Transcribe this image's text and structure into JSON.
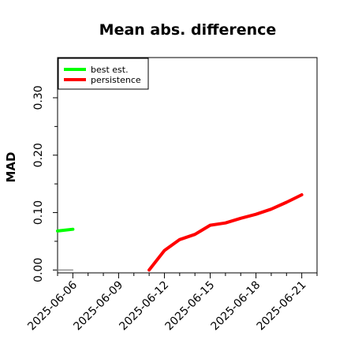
{
  "chart_data": {
    "type": "line",
    "title": "Mean abs. difference",
    "ylabel": "MAD",
    "xlabel": "",
    "ylim": [
      -0.005,
      0.37
    ],
    "yticks": [
      "0.00",
      "0.10",
      "0.20",
      "0.30"
    ],
    "ytick_values": [
      0.0,
      0.1,
      0.2,
      0.3
    ],
    "xticks": [
      "2025-06-06",
      "2025-06-09",
      "2025-06-12",
      "2025-06-15",
      "2025-06-18",
      "2025-06-21"
    ],
    "xlim": [
      "2025-06-05",
      "2025-06-22"
    ],
    "legend_position": "top-left",
    "grid": false,
    "series": [
      {
        "name": "best est.",
        "color": "#00ff00",
        "x": [
          "2025-06-05",
          "2025-06-06"
        ],
        "y": [
          0.068,
          0.071
        ]
      },
      {
        "name": "persistence",
        "color": "#ff0000",
        "x": [
          "2025-06-11",
          "2025-06-12",
          "2025-06-13",
          "2025-06-14",
          "2025-06-15",
          "2025-06-16",
          "2025-06-17",
          "2025-06-18",
          "2025-06-19",
          "2025-06-20",
          "2025-06-21"
        ],
        "y": [
          0.0,
          0.034,
          0.053,
          0.062,
          0.078,
          0.082,
          0.09,
          0.097,
          0.106,
          0.118,
          0.131
        ]
      },
      {
        "name": "",
        "color": "#808080",
        "x": [
          "2025-06-05",
          "2025-06-06"
        ],
        "y": [
          0.0,
          0.0
        ]
      }
    ]
  }
}
